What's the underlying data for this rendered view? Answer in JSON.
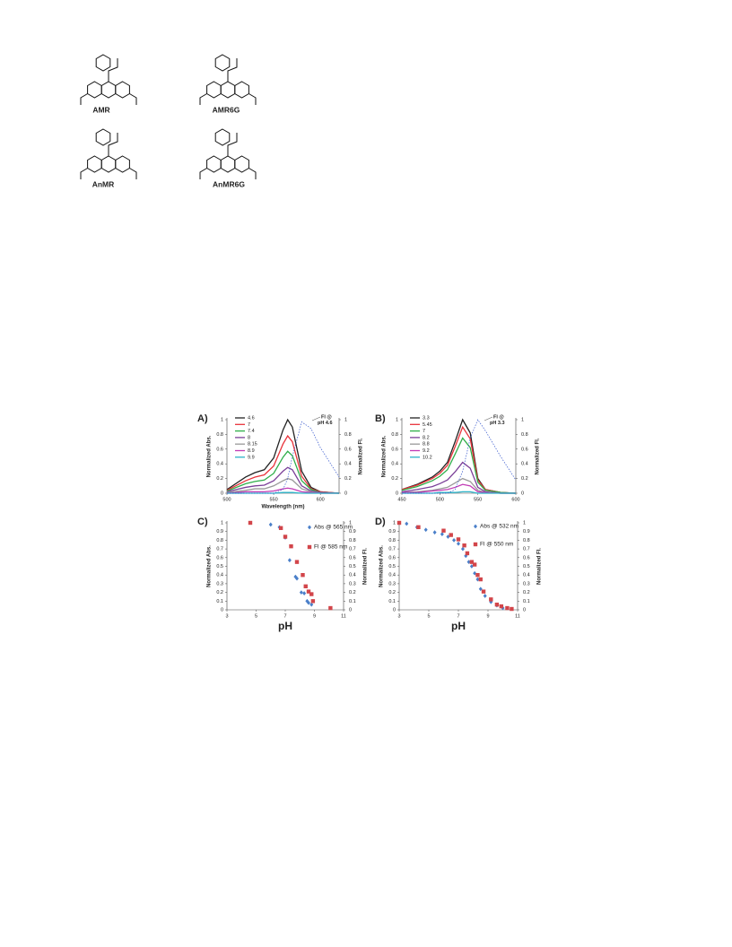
{
  "structures": [
    {
      "label": "AMR"
    },
    {
      "label": "AMR6G"
    },
    {
      "label": "AnMR"
    },
    {
      "label": "AnMR6G"
    }
  ],
  "chart_data": [
    {
      "type": "line",
      "panel": "A)",
      "xlabel": "Wavelength (nm)",
      "ylabel": "Normalized Abs.",
      "y2label": "Normalized Fl.",
      "x": [
        500,
        520,
        530,
        540,
        550,
        560,
        565,
        570,
        580,
        590,
        600,
        620
      ],
      "xlim": [
        500,
        620
      ],
      "xticks": [
        500,
        550,
        600
      ],
      "ylim": [
        0,
        1
      ],
      "yticks": [
        0,
        0.2,
        0.4,
        0.6,
        0.8,
        1
      ],
      "y2lim": [
        0,
        1
      ],
      "y2ticks": [
        0,
        0.2,
        0.4,
        0.6,
        0.8,
        1
      ],
      "annotation": [
        "Fl @",
        "pH 4.6"
      ],
      "series": [
        {
          "name": "4.6",
          "color": "#222222",
          "values": [
            0.05,
            0.22,
            0.28,
            0.32,
            0.48,
            0.86,
            1.0,
            0.9,
            0.3,
            0.08,
            0.02,
            0
          ]
        },
        {
          "name": "7",
          "color": "#e8333b",
          "values": [
            0.04,
            0.17,
            0.22,
            0.25,
            0.37,
            0.67,
            0.78,
            0.7,
            0.23,
            0.06,
            0.02,
            0
          ]
        },
        {
          "name": "7.4",
          "color": "#2fae4a",
          "values": [
            0.03,
            0.13,
            0.16,
            0.18,
            0.27,
            0.49,
            0.57,
            0.51,
            0.17,
            0.05,
            0.01,
            0
          ]
        },
        {
          "name": "8",
          "color": "#7b3f98",
          "values": [
            0.02,
            0.08,
            0.1,
            0.11,
            0.17,
            0.3,
            0.35,
            0.32,
            0.1,
            0.03,
            0.01,
            0
          ]
        },
        {
          "name": "8.15",
          "color": "#999999",
          "values": [
            0.01,
            0.04,
            0.06,
            0.06,
            0.1,
            0.17,
            0.2,
            0.18,
            0.06,
            0.02,
            0,
            0
          ]
        },
        {
          "name": "8.9",
          "color": "#c23ab5",
          "values": [
            0,
            0.02,
            0.02,
            0.02,
            0.03,
            0.06,
            0.07,
            0.06,
            0.02,
            0.01,
            0,
            0
          ]
        },
        {
          "name": "9.9",
          "color": "#2bb3c8",
          "values": [
            0,
            0,
            0,
            0,
            0,
            0.01,
            0.01,
            0.01,
            0,
            0,
            0,
            0
          ]
        },
        {
          "color": "#3355cc",
          "dash": "1.5,1.5",
          "axis": "y2",
          "values": [
            0,
            0,
            0,
            0,
            0,
            0.05,
            0.2,
            0.5,
            0.97,
            0.88,
            0.62,
            0.22
          ]
        }
      ]
    },
    {
      "type": "line",
      "panel": "B)",
      "ylabel": "Normalized Abs.",
      "y2label": "Normalized Fl.",
      "x": [
        450,
        470,
        490,
        500,
        510,
        520,
        530,
        540,
        550,
        560,
        580,
        600
      ],
      "xlim": [
        450,
        600
      ],
      "xticks": [
        450,
        500,
        550,
        600
      ],
      "ylim": [
        0,
        1
      ],
      "yticks": [
        0,
        0.2,
        0.4,
        0.6,
        0.8,
        1
      ],
      "y2lim": [
        0,
        1
      ],
      "y2ticks": [
        0,
        0.2,
        0.4,
        0.6,
        0.8,
        1
      ],
      "annotation": [
        "Fl @",
        "pH 3.3"
      ],
      "series": [
        {
          "name": "3.3",
          "color": "#222222",
          "values": [
            0.05,
            0.12,
            0.22,
            0.3,
            0.42,
            0.7,
            1.0,
            0.82,
            0.2,
            0.05,
            0.01,
            0
          ]
        },
        {
          "name": "5.45",
          "color": "#e8333b",
          "values": [
            0.05,
            0.11,
            0.2,
            0.27,
            0.38,
            0.63,
            0.9,
            0.74,
            0.18,
            0.05,
            0.01,
            0
          ]
        },
        {
          "name": "7",
          "color": "#2fae4a",
          "values": [
            0.04,
            0.09,
            0.17,
            0.23,
            0.32,
            0.53,
            0.75,
            0.62,
            0.15,
            0.04,
            0.01,
            0
          ]
        },
        {
          "name": "8.2",
          "color": "#7b3f98",
          "values": [
            0.02,
            0.05,
            0.09,
            0.13,
            0.18,
            0.29,
            0.42,
            0.34,
            0.08,
            0.02,
            0,
            0
          ]
        },
        {
          "name": "8.8",
          "color": "#999999",
          "values": [
            0.01,
            0.02,
            0.04,
            0.06,
            0.08,
            0.14,
            0.2,
            0.16,
            0.04,
            0.01,
            0,
            0
          ]
        },
        {
          "name": "9.2",
          "color": "#c23ab5",
          "values": [
            0.01,
            0.01,
            0.03,
            0.04,
            0.05,
            0.08,
            0.12,
            0.1,
            0.02,
            0.01,
            0,
            0
          ]
        },
        {
          "name": "10.2",
          "color": "#2bb3c8",
          "values": [
            0,
            0,
            0,
            0.01,
            0.01,
            0.01,
            0.02,
            0.02,
            0,
            0,
            0,
            0
          ]
        },
        {
          "color": "#3355cc",
          "dash": "1.5,1.5",
          "axis": "y2",
          "values": [
            0,
            0,
            0,
            0,
            0,
            0.05,
            0.3,
            0.75,
            1.0,
            0.85,
            0.5,
            0.18
          ]
        }
      ]
    },
    {
      "type": "scatter",
      "panel": "C)",
      "xlabel": "pH",
      "ylabel": "Normalized Abs.",
      "y2label": "Normalized Fl.",
      "xlim": [
        3,
        11
      ],
      "xticks": [
        3,
        5,
        7,
        9,
        11
      ],
      "ylim": [
        0,
        1
      ],
      "yticks": [
        0,
        0.1,
        0.2,
        0.3,
        0.4,
        0.5,
        0.6,
        0.7,
        0.8,
        0.9,
        1
      ],
      "y2lim": [
        0,
        1
      ],
      "y2ticks": [
        0,
        0.1,
        0.2,
        0.3,
        0.4,
        0.5,
        0.6,
        0.7,
        0.8,
        0.9,
        1
      ],
      "series": [
        {
          "name": "Abs @ 565 nm",
          "color": "#4a7fc9",
          "marker": "diamond",
          "x": [
            6,
            6.6,
            7.0,
            7.3,
            7.7,
            7.8,
            8.1,
            8.3,
            8.5,
            8.6,
            8.8
          ],
          "values": [
            0.98,
            0.95,
            0.83,
            0.57,
            0.38,
            0.36,
            0.2,
            0.19,
            0.1,
            0.08,
            0.06
          ]
        },
        {
          "name": "Fl @ 585 nm",
          "color": "#d2454a",
          "marker": "square",
          "axis": "y2",
          "x": [
            4.6,
            6.7,
            7.0,
            7.4,
            7.8,
            8.2,
            8.4,
            8.6,
            8.8,
            8.9,
            10.1
          ],
          "values": [
            1.0,
            0.94,
            0.84,
            0.73,
            0.55,
            0.4,
            0.27,
            0.21,
            0.18,
            0.1,
            0.02
          ]
        }
      ]
    },
    {
      "type": "scatter",
      "panel": "D)",
      "xlabel": "pH",
      "ylabel": "Normalized Abs.",
      "y2label": "Normalized Fl.",
      "xlim": [
        3,
        11
      ],
      "xticks": [
        3,
        5,
        7,
        9,
        11
      ],
      "ylim": [
        0,
        1
      ],
      "yticks": [
        0,
        0.1,
        0.2,
        0.3,
        0.4,
        0.5,
        0.6,
        0.7,
        0.8,
        0.9,
        1
      ],
      "y2lim": [
        0,
        1
      ],
      "y2ticks": [
        0,
        0.1,
        0.2,
        0.3,
        0.4,
        0.5,
        0.6,
        0.7,
        0.8,
        0.9,
        1
      ],
      "series": [
        {
          "name": "Abs @ 532 nm",
          "color": "#4a7fc9",
          "marker": "diamond",
          "x": [
            3,
            3.5,
            4.2,
            4.8,
            5.4,
            5.9,
            6.3,
            6.7,
            7.0,
            7.3,
            7.5,
            7.7,
            7.9,
            8.1,
            8.3,
            8.5,
            8.8,
            9.2,
            9.6,
            10
          ],
          "values": [
            1,
            0.99,
            0.95,
            0.92,
            0.89,
            0.87,
            0.84,
            0.8,
            0.76,
            0.7,
            0.62,
            0.55,
            0.5,
            0.42,
            0.35,
            0.24,
            0.16,
            0.09,
            0.05,
            0.02
          ]
        },
        {
          "name": "Fl @ 550 nm",
          "color": "#d2454a",
          "marker": "square",
          "axis": "y2",
          "x": [
            3,
            4.3,
            6,
            6.5,
            7,
            7.4,
            7.6,
            7.9,
            8.1,
            8.3,
            8.5,
            8.7,
            9.2,
            9.6,
            9.9,
            10.3,
            10.6
          ],
          "values": [
            1,
            0.95,
            0.91,
            0.86,
            0.81,
            0.74,
            0.65,
            0.55,
            0.52,
            0.4,
            0.35,
            0.21,
            0.12,
            0.06,
            0.04,
            0.02,
            0.01
          ]
        }
      ]
    }
  ]
}
